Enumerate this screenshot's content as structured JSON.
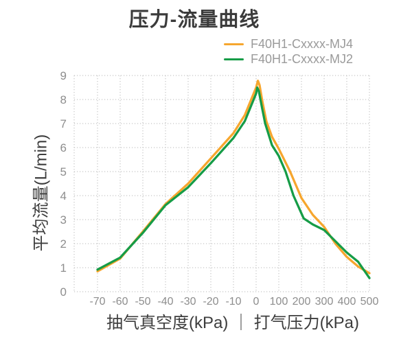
{
  "chart_data": {
    "type": "line",
    "title": "压力-流量曲线",
    "xlabel": "抽气真空度(kPa) ｜ 打气压力(kPa)",
    "ylabel": "平均流量(L/min)",
    "x_tick_labels": [
      "-70",
      "-60",
      "-50",
      "-40",
      "-30",
      "-20",
      "-10",
      "0",
      "100",
      "200",
      "300",
      "400",
      "500"
    ],
    "x_tick_values": [
      -70,
      -60,
      -50,
      -40,
      -30,
      -20,
      -10,
      0,
      100,
      200,
      300,
      400,
      500
    ],
    "y_tick_labels": [
      "0",
      "1",
      "2",
      "3",
      "4",
      "5",
      "6",
      "7",
      "8",
      "9"
    ],
    "ylim": [
      0,
      9
    ],
    "grid": "dotted",
    "legend_position": "top-right",
    "colors": {
      "grid": "#c5c5c5",
      "tick_text": "#8d8d8d",
      "axis_title_text": "#3d3d3d",
      "legend_text": "#9a9a9a",
      "title_text": "#3b3b3b"
    },
    "series": [
      {
        "name": "F40H1-Cxxxx-MJ4",
        "color": "#F6A62E",
        "points": [
          [
            -70,
            0.85
          ],
          [
            -60,
            1.38
          ],
          [
            -50,
            2.5
          ],
          [
            -40,
            3.65
          ],
          [
            -30,
            4.5
          ],
          [
            -20,
            5.55
          ],
          [
            -10,
            6.6
          ],
          [
            -5,
            7.35
          ],
          [
            0,
            8.5
          ],
          [
            8,
            8.78
          ],
          [
            15,
            8.6
          ],
          [
            28,
            7.9
          ],
          [
            45,
            7.1
          ],
          [
            70,
            6.45
          ],
          [
            100,
            5.95
          ],
          [
            150,
            5.0
          ],
          [
            200,
            3.9
          ],
          [
            250,
            3.2
          ],
          [
            300,
            2.7
          ],
          [
            350,
            2.0
          ],
          [
            400,
            1.45
          ],
          [
            450,
            1.05
          ],
          [
            500,
            0.77
          ]
        ]
      },
      {
        "name": "F40H1-Cxxxx-MJ2",
        "color": "#169C47",
        "points": [
          [
            -70,
            0.92
          ],
          [
            -60,
            1.42
          ],
          [
            -50,
            2.45
          ],
          [
            -40,
            3.6
          ],
          [
            -30,
            4.35
          ],
          [
            -20,
            5.35
          ],
          [
            -10,
            6.4
          ],
          [
            -5,
            7.1
          ],
          [
            0,
            8.25
          ],
          [
            5,
            8.5
          ],
          [
            12,
            8.35
          ],
          [
            25,
            7.7
          ],
          [
            40,
            7.0
          ],
          [
            70,
            6.1
          ],
          [
            100,
            5.65
          ],
          [
            130,
            5.0
          ],
          [
            165,
            4.0
          ],
          [
            210,
            3.05
          ],
          [
            250,
            2.8
          ],
          [
            300,
            2.57
          ],
          [
            350,
            2.1
          ],
          [
            400,
            1.63
          ],
          [
            450,
            1.25
          ],
          [
            500,
            0.57
          ]
        ]
      }
    ]
  }
}
